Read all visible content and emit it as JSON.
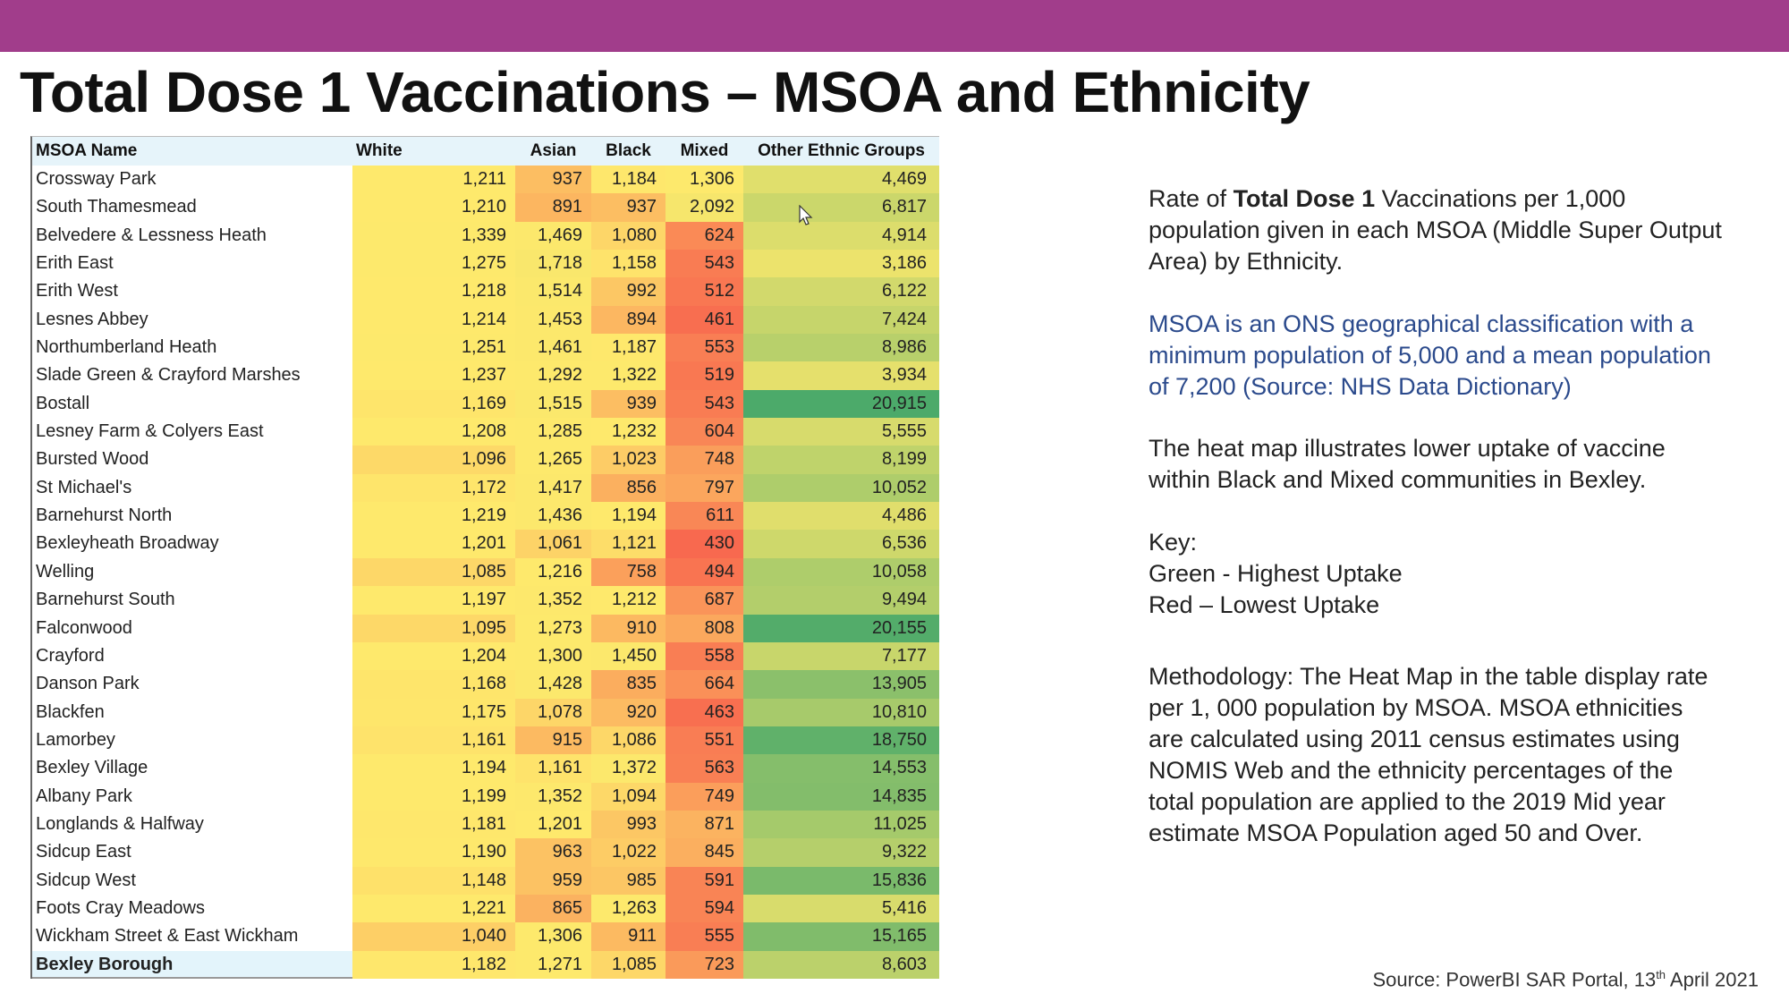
{
  "header": {
    "title": "Total Dose 1 Vaccinations  – MSOA and Ethnicity",
    "bar_color": "#a13d8b"
  },
  "table": {
    "columns": [
      "MSOA Name",
      "White",
      "Asian",
      "Black",
      "Mixed",
      "Other Ethnic Groups"
    ],
    "rows": [
      [
        "Crossway Park",
        "1,211",
        "937",
        "1,184",
        "1,306",
        "4,469"
      ],
      [
        "South Thamesmead",
        "1,210",
        "891",
        "937",
        "2,092",
        "6,817"
      ],
      [
        "Belvedere & Lessness Heath",
        "1,339",
        "1,469",
        "1,080",
        "624",
        "4,914"
      ],
      [
        "Erith East",
        "1,275",
        "1,718",
        "1,158",
        "543",
        "3,186"
      ],
      [
        "Erith West",
        "1,218",
        "1,514",
        "992",
        "512",
        "6,122"
      ],
      [
        "Lesnes Abbey",
        "1,214",
        "1,453",
        "894",
        "461",
        "7,424"
      ],
      [
        "Northumberland Heath",
        "1,251",
        "1,461",
        "1,187",
        "553",
        "8,986"
      ],
      [
        "Slade Green & Crayford Marshes",
        "1,237",
        "1,292",
        "1,322",
        "519",
        "3,934"
      ],
      [
        "Bostall",
        "1,169",
        "1,515",
        "939",
        "543",
        "20,915"
      ],
      [
        "Lesney Farm & Colyers East",
        "1,208",
        "1,285",
        "1,232",
        "604",
        "5,555"
      ],
      [
        "Bursted Wood",
        "1,096",
        "1,265",
        "1,023",
        "748",
        "8,199"
      ],
      [
        "St Michael's",
        "1,172",
        "1,417",
        "856",
        "797",
        "10,052"
      ],
      [
        "Barnehurst North",
        "1,219",
        "1,436",
        "1,194",
        "611",
        "4,486"
      ],
      [
        "Bexleyheath Broadway",
        "1,201",
        "1,061",
        "1,121",
        "430",
        "6,536"
      ],
      [
        "Welling",
        "1,085",
        "1,216",
        "758",
        "494",
        "10,058"
      ],
      [
        "Barnehurst South",
        "1,197",
        "1,352",
        "1,212",
        "687",
        "9,494"
      ],
      [
        "Falconwood",
        "1,095",
        "1,273",
        "910",
        "808",
        "20,155"
      ],
      [
        "Crayford",
        "1,204",
        "1,300",
        "1,450",
        "558",
        "7,177"
      ],
      [
        "Danson Park",
        "1,168",
        "1,428",
        "835",
        "664",
        "13,905"
      ],
      [
        "Blackfen",
        "1,175",
        "1,078",
        "920",
        "463",
        "10,810"
      ],
      [
        "Lamorbey",
        "1,161",
        "915",
        "1,086",
        "551",
        "18,750"
      ],
      [
        "Bexley Village",
        "1,194",
        "1,161",
        "1,372",
        "563",
        "14,553"
      ],
      [
        "Albany Park",
        "1,199",
        "1,352",
        "1,094",
        "749",
        "14,835"
      ],
      [
        "Longlands & Halfway",
        "1,181",
        "1,201",
        "993",
        "871",
        "11,025"
      ],
      [
        "Sidcup East",
        "1,190",
        "963",
        "1,022",
        "845",
        "9,322"
      ],
      [
        "Sidcup West",
        "1,148",
        "959",
        "985",
        "591",
        "15,836"
      ],
      [
        "Foots Cray Meadows",
        "1,221",
        "865",
        "1,263",
        "594",
        "5,416"
      ],
      [
        "Wickham Street & East Wickham",
        "1,040",
        "1,306",
        "911",
        "555",
        "15,165"
      ]
    ],
    "total": [
      "Bexley Borough",
      "1,182",
      "1,271",
      "1,085",
      "723",
      "8,603"
    ],
    "heat_colors": {
      "low": "#f8694f",
      "mid": "#fee96c",
      "high": "#4caa6a"
    }
  },
  "side": {
    "p1": {
      "pre": "Rate of ",
      "bold": "Total Dose 1",
      "post": " Vaccinations per 1,000",
      "line2": "population given in each MSOA (Middle Super Output",
      "line3": "Area) by Ethnicity."
    },
    "p2": [
      "MSOA is an ONS  geographical classification with a",
      "minimum population  of 5,000 and a mean population",
      "of 7,200 (Source: NHS Data Dictionary)"
    ],
    "p3": [
      "The heat map illustrates lower uptake of vaccine",
      "within Black and Mixed communities in Bexley."
    ],
    "key": [
      "Key:",
      "Green  - Highest Uptake",
      "Red – Lowest Uptake"
    ],
    "methodology": [
      "Methodology: The Heat Map in the table display rate",
      "per 1, 000 population by MSOA. MSOA ethnicities",
      "are calculated using 2011 census estimates using",
      "NOMIS Web and the ethnicity  percentages of the",
      "total population are applied to the 2019 Mid year",
      "estimate MSOA Population aged 50 and Over."
    ]
  },
  "source": {
    "text": "Source: PowerBI SAR Portal, 13",
    "sup": "th",
    "tail": " April 2021"
  }
}
